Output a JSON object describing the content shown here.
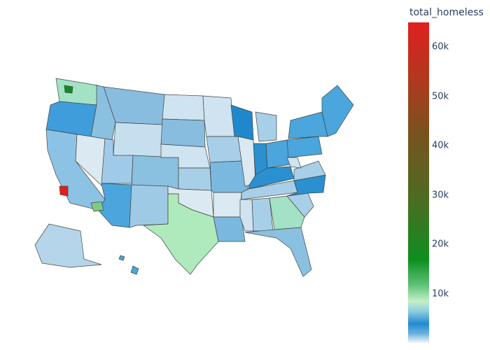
{
  "chart_data": {
    "type": "choropleth",
    "title": "",
    "colorbar": {
      "title": "total_homeless",
      "range": [
        0,
        65000
      ],
      "ticks": [
        {
          "value": 10000,
          "label": "10k"
        },
        {
          "value": 20000,
          "label": "20k"
        },
        {
          "value": 30000,
          "label": "30k"
        },
        {
          "value": 40000,
          "label": "40k"
        },
        {
          "value": 50000,
          "label": "50k"
        },
        {
          "value": 60000,
          "label": "60k"
        }
      ],
      "colorscale": [
        "#f4f8fb",
        "#1f8bd0",
        "#c3f0c8",
        "#0e8e1e",
        "#4f6a22",
        "#7a521e",
        "#e01f1f"
      ]
    },
    "regions": [
      {
        "name": "WA",
        "color": "#a3e2c4"
      },
      {
        "name": "OR",
        "color": "#3f9ddb"
      },
      {
        "name": "CA",
        "color": "#8cc3e4"
      },
      {
        "name": "NV",
        "color": "#dbe9f2"
      },
      {
        "name": "ID",
        "color": "#8ac0e0"
      },
      {
        "name": "MT",
        "color": "#88bde0"
      },
      {
        "name": "WY",
        "color": "#c6dfee"
      },
      {
        "name": "UT",
        "color": "#a0cbe8"
      },
      {
        "name": "CO",
        "color": "#8ac0e0"
      },
      {
        "name": "AZ",
        "color": "#4aa6dc"
      },
      {
        "name": "NM",
        "color": "#9ecae6"
      },
      {
        "name": "ND",
        "color": "#cfe3f0"
      },
      {
        "name": "SD",
        "color": "#88bde0"
      },
      {
        "name": "NE",
        "color": "#cfe3f0"
      },
      {
        "name": "KS",
        "color": "#a8cfe8"
      },
      {
        "name": "OK",
        "color": "#dbe9f2"
      },
      {
        "name": "TX",
        "color": "#aeeabb"
      },
      {
        "name": "MN",
        "color": "#cfe3f0"
      },
      {
        "name": "IA",
        "color": "#a8cfe8"
      },
      {
        "name": "MO",
        "color": "#7ab8e0"
      },
      {
        "name": "AR",
        "color": "#dbe9f2"
      },
      {
        "name": "LA",
        "color": "#7ab8e0"
      },
      {
        "name": "WI",
        "color": "#1f88cc"
      },
      {
        "name": "IL",
        "color": "#dbe9f2"
      },
      {
        "name": "MI",
        "color": "#a8cfe8"
      },
      {
        "name": "IN",
        "color": "#2a90d0"
      },
      {
        "name": "OH",
        "color": "#4aa6dc"
      },
      {
        "name": "KY",
        "color": "#2a90d0"
      },
      {
        "name": "TN",
        "color": "#a8cfe8"
      },
      {
        "name": "MS",
        "color": "#cfe3f0"
      },
      {
        "name": "AL",
        "color": "#a8cfe8"
      },
      {
        "name": "GA",
        "color": "#a3e2c4"
      },
      {
        "name": "FL",
        "color": "#8ac0e0"
      },
      {
        "name": "SC",
        "color": "#a8cfe8"
      },
      {
        "name": "NC",
        "color": "#2a90d0"
      },
      {
        "name": "VA",
        "color": "#a8cfe8"
      },
      {
        "name": "WV",
        "color": "#cfe3f0"
      },
      {
        "name": "PA",
        "color": "#4aa6dc"
      },
      {
        "name": "NY",
        "color": "#4aa6dc"
      },
      {
        "name": "NE-states",
        "color": "#4aa6dc"
      },
      {
        "name": "AK",
        "color": "#b5d5ea"
      },
      {
        "name": "HI",
        "color": "#4aa6dc"
      },
      {
        "name": "LA-county",
        "color": "#e01f1f"
      },
      {
        "name": "Seattle-area",
        "color": "#0e8e1e"
      },
      {
        "name": "Maricopa",
        "color": "#7ccc88"
      }
    ]
  }
}
